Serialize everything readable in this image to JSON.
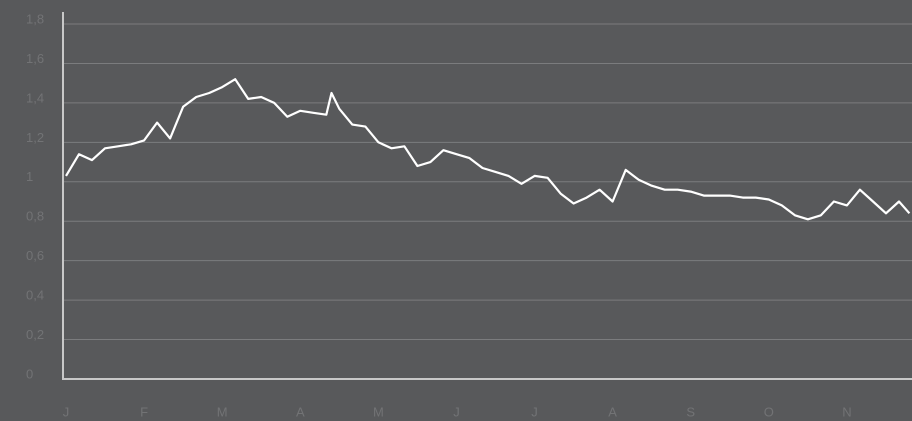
{
  "chart_data": {
    "type": "line",
    "x": [
      0,
      5,
      10,
      15,
      20,
      25,
      30,
      35,
      40,
      45,
      50,
      55,
      60,
      65,
      70,
      75,
      80,
      85,
      90,
      95,
      100,
      102,
      105,
      110,
      115,
      120,
      125,
      130,
      135,
      140,
      145,
      150,
      155,
      160,
      165,
      170,
      175,
      180,
      185,
      190,
      195,
      200,
      205,
      210,
      215,
      220,
      225,
      230,
      235,
      240,
      245,
      250,
      255,
      260,
      265,
      270,
      275,
      280,
      285,
      290,
      295,
      300,
      305,
      310,
      315,
      320,
      324
    ],
    "series": [
      {
        "color": "#ffffff",
        "values": [
          1.03,
          1.14,
          1.11,
          1.17,
          1.18,
          1.19,
          1.21,
          1.3,
          1.22,
          1.38,
          1.43,
          1.45,
          1.48,
          1.52,
          1.42,
          1.43,
          1.4,
          1.33,
          1.36,
          1.35,
          1.34,
          1.45,
          1.37,
          1.29,
          1.28,
          1.2,
          1.17,
          1.18,
          1.08,
          1.1,
          1.16,
          1.14,
          1.12,
          1.07,
          1.05,
          1.03,
          0.99,
          1.03,
          1.02,
          0.94,
          0.89,
          0.92,
          0.96,
          0.9,
          1.06,
          1.01,
          0.98,
          0.96,
          0.96,
          0.95,
          0.93,
          0.93,
          0.93,
          0.92,
          0.92,
          0.91,
          0.88,
          0.83,
          0.81,
          0.83,
          0.9,
          0.88,
          0.96,
          0.9,
          0.84,
          0.9,
          0.84
        ]
      }
    ],
    "xlim": [
      0,
      325
    ],
    "xticks": [
      {
        "value": 0,
        "label": "J"
      },
      {
        "value": 30,
        "label": "F"
      },
      {
        "value": 60,
        "label": "M"
      },
      {
        "value": 90,
        "label": "A"
      },
      {
        "value": 120,
        "label": "M"
      },
      {
        "value": 150,
        "label": "J"
      },
      {
        "value": 180,
        "label": "J"
      },
      {
        "value": 210,
        "label": "A"
      },
      {
        "value": 240,
        "label": "S"
      },
      {
        "value": 270,
        "label": "O"
      },
      {
        "value": 300,
        "label": "N"
      }
    ],
    "ylim": [
      0,
      1.8
    ],
    "yticks": [
      0,
      {
        "value": 0.2,
        "label": "0,2"
      },
      {
        "value": 0.4,
        "label": "0,4"
      },
      {
        "value": 0.6,
        "label": "0,6"
      },
      {
        "value": 0.8,
        "label": "0,8"
      },
      1,
      {
        "value": 1.2,
        "label": "1,2"
      },
      {
        "value": 1.4,
        "label": "1,4"
      },
      {
        "value": 1.6,
        "label": "1,6"
      },
      {
        "value": 1.8,
        "label": "1,8"
      }
    ],
    "grid": true
  }
}
